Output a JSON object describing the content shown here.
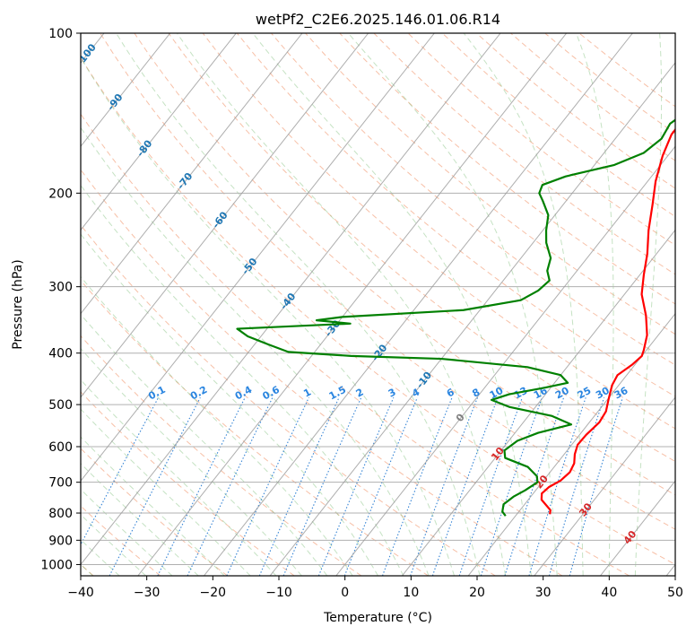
{
  "chart_data": {
    "type": "line",
    "title": "wetPf2_C2E6.2025.146.01.06.R14",
    "xlabel": "Temperature (°C)",
    "ylabel": "Pressure (hPa)",
    "xlim": [
      -40,
      50
    ],
    "ylim": [
      1050,
      100
    ],
    "y_scale": "log",
    "grid": true,
    "x_ticks": [
      -40,
      -30,
      -20,
      -10,
      0,
      10,
      20,
      30,
      40,
      50
    ],
    "x_tick_labels": [
      "−40",
      "−30",
      "−20",
      "−10",
      "0",
      "10",
      "20",
      "30",
      "40",
      "50"
    ],
    "y_ticks": [
      100,
      200,
      300,
      400,
      500,
      600,
      700,
      800,
      900,
      1000
    ],
    "y_tick_labels": [
      "100",
      "200",
      "300",
      "400",
      "500",
      "600",
      "700",
      "800",
      "900",
      "1000"
    ],
    "skew_isotherm_labels": [
      {
        "t": -100,
        "p": 110,
        "text": "-100"
      },
      {
        "t": -90,
        "p": 135,
        "text": "-90"
      },
      {
        "t": -80,
        "p": 165,
        "text": "-80"
      },
      {
        "t": -70,
        "p": 190,
        "text": "-70"
      },
      {
        "t": -60,
        "p": 225,
        "text": "-60"
      },
      {
        "t": -50,
        "p": 275,
        "text": "-50"
      },
      {
        "t": -40,
        "p": 320,
        "text": "-40"
      },
      {
        "t": -30,
        "p": 360,
        "text": "-30"
      },
      {
        "t": -20,
        "p": 400,
        "text": "-20"
      },
      {
        "t": -10,
        "p": 450,
        "text": "-10"
      },
      {
        "t": 0,
        "p": 530,
        "text": "0"
      },
      {
        "t": 10,
        "p": 620,
        "text": "10"
      },
      {
        "t": 20,
        "p": 700,
        "text": "20"
      },
      {
        "t": 30,
        "p": 790,
        "text": "30"
      },
      {
        "t": 40,
        "p": 890,
        "text": "40"
      }
    ],
    "mixing_ratio_labels": [
      "0.1",
      "0.2",
      "0.4",
      "0.6",
      "1",
      "1.5",
      "2",
      "3",
      "4",
      "6",
      "8",
      "10",
      "13",
      "16",
      "20",
      "25",
      "30",
      "36"
    ],
    "mixing_ratio_label_pressure": 485,
    "series": [
      {
        "color": "#ff0000",
        "points": [
          [
            804,
            25.0
          ],
          [
            790,
            24.6
          ],
          [
            775,
            23.5
          ],
          [
            755,
            22.0
          ],
          [
            735,
            21.3
          ],
          [
            715,
            21.6
          ],
          [
            695,
            22.6
          ],
          [
            670,
            23.0
          ],
          [
            645,
            22.6
          ],
          [
            620,
            21.6
          ],
          [
            595,
            20.9
          ],
          [
            570,
            21.0
          ],
          [
            540,
            21.5
          ],
          [
            515,
            21.2
          ],
          [
            490,
            20.2
          ],
          [
            460,
            19.0
          ],
          [
            440,
            18.6
          ],
          [
            420,
            19.6
          ],
          [
            405,
            20.0
          ],
          [
            395,
            19.6
          ],
          [
            370,
            18.3
          ],
          [
            340,
            15.8
          ],
          [
            310,
            12.6
          ],
          [
            285,
            10.6
          ],
          [
            260,
            8.6
          ],
          [
            235,
            6.0
          ],
          [
            210,
            3.5
          ],
          [
            190,
            1.2
          ],
          [
            170,
            -0.8
          ],
          [
            155,
            -2.0
          ],
          [
            140,
            -2.0
          ],
          [
            128,
            -1.6
          ],
          [
            118,
            -0.6
          ],
          [
            108,
            0.5
          ],
          [
            100,
            1.5
          ]
        ]
      },
      {
        "color": "#008000",
        "points": [
          [
            810,
            18.5
          ],
          [
            795,
            17.5
          ],
          [
            770,
            16.8
          ],
          [
            745,
            17.4
          ],
          [
            725,
            18.4
          ],
          [
            700,
            19.3
          ],
          [
            682,
            18.5
          ],
          [
            655,
            16.0
          ],
          [
            630,
            11.5
          ],
          [
            610,
            10.5
          ],
          [
            585,
            11.3
          ],
          [
            565,
            13.5
          ],
          [
            545,
            17.5
          ],
          [
            525,
            13.5
          ],
          [
            505,
            6.0
          ],
          [
            490,
            2.5
          ],
          [
            478,
            4.5
          ],
          [
            465,
            9.0
          ],
          [
            455,
            12.0
          ],
          [
            440,
            10.0
          ],
          [
            425,
            4.0
          ],
          [
            410,
            -10.0
          ],
          [
            405,
            -24.0
          ],
          [
            398,
            -34.0
          ],
          [
            385,
            -38.0
          ],
          [
            372,
            -42.0
          ],
          [
            360,
            -44.5
          ],
          [
            352,
            -28.0
          ],
          [
            347,
            -33.5
          ],
          [
            342,
            -30.0
          ],
          [
            332,
            -12.5
          ],
          [
            318,
            -5.0
          ],
          [
            305,
            -3.5
          ],
          [
            292,
            -3.0
          ],
          [
            280,
            -4.5
          ],
          [
            265,
            -5.5
          ],
          [
            248,
            -8.0
          ],
          [
            235,
            -9.5
          ],
          [
            220,
            -11.0
          ],
          [
            207,
            -13.5
          ],
          [
            200,
            -15.0
          ],
          [
            193,
            -15.5
          ],
          [
            186,
            -13.0
          ],
          [
            177,
            -7.0
          ],
          [
            168,
            -4.0
          ],
          [
            158,
            -3.0
          ],
          [
            148,
            -3.5
          ],
          [
            138,
            -2.0
          ],
          [
            128,
            -2.8
          ],
          [
            118,
            -1.0
          ],
          [
            108,
            0.5
          ],
          [
            100,
            1.0
          ]
        ]
      }
    ]
  }
}
